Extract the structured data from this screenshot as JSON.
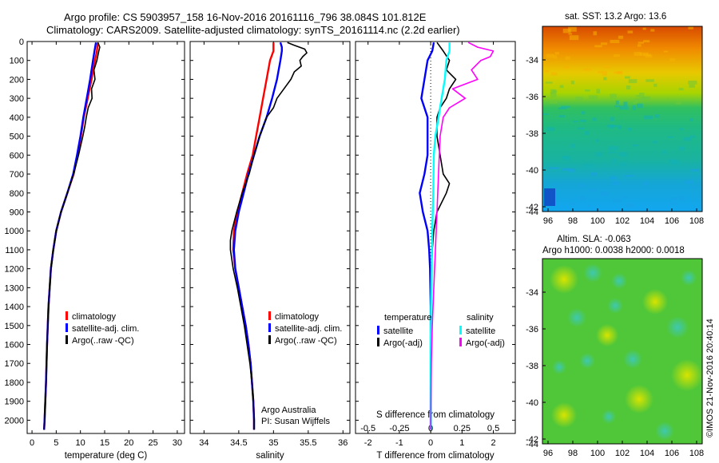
{
  "header": {
    "line1": "Argo profile: CS 5903957_158 16-Nov-2016 20161116_796 38.084S 101.812E",
    "line2": "Climatology: CARS2009. Satellite-adjusted climatology: synTS_20161114.nc (2.2d earlier)"
  },
  "colors": {
    "climatology": "#ff0000",
    "satellite": "#0000ff",
    "argo": "#000000",
    "sat_diff_s": "#00ffff",
    "argo_diff_s": "#ff00ff"
  },
  "chart_data": [
    {
      "type": "line",
      "panel": "temperature",
      "xlabel": "temperature (deg C)",
      "ylabel": "",
      "xlim": [
        -1,
        31.5
      ],
      "ylim": [
        2070,
        0
      ],
      "xticks": [
        0,
        5,
        10,
        15,
        20,
        25,
        30
      ],
      "yticks": [
        0,
        100,
        200,
        300,
        400,
        500,
        600,
        700,
        800,
        900,
        1000,
        1100,
        1200,
        1300,
        1400,
        1500,
        1600,
        1700,
        1800,
        1900,
        2000
      ],
      "legend": [
        "climatology",
        "satellite-adj. clim.",
        "Argo(..raw -QC)"
      ],
      "series": [
        {
          "name": "climatology",
          "depth": [
            5,
            50,
            100,
            200,
            300,
            400,
            500,
            600,
            700,
            800,
            900,
            1000,
            1100,
            1200,
            1400,
            1600,
            1800,
            2000,
            2050
          ],
          "values": [
            13.6,
            13.4,
            13.0,
            12.3,
            11.5,
            10.7,
            10.1,
            9.4,
            8.6,
            7.3,
            6.0,
            5.0,
            4.4,
            3.9,
            3.4,
            3.1,
            2.9,
            2.6,
            2.5
          ]
        },
        {
          "name": "satellite-adj. clim.",
          "depth": [
            5,
            50,
            100,
            200,
            300,
            400,
            500,
            600,
            700,
            800,
            900,
            1000,
            1100,
            1200,
            1400,
            1600,
            1800,
            2000,
            2050
          ],
          "values": [
            13.2,
            12.9,
            12.6,
            12.0,
            11.3,
            10.6,
            10.0,
            9.3,
            8.5,
            7.3,
            6.0,
            5.0,
            4.4,
            3.9,
            3.4,
            3.1,
            2.9,
            2.6,
            2.5
          ]
        },
        {
          "name": "Argo(..raw -QC)",
          "depth": [
            5,
            30,
            50,
            100,
            150,
            200,
            250,
            300,
            350,
            400,
            450,
            500,
            600,
            700,
            800,
            900,
            1000,
            1100,
            1200,
            1400,
            1600,
            1800,
            2000,
            2050
          ],
          "values": [
            13.6,
            14.0,
            13.8,
            13.4,
            12.8,
            13.0,
            12.3,
            12.4,
            11.6,
            11.2,
            10.9,
            10.5,
            9.6,
            8.6,
            7.3,
            6.0,
            5.0,
            4.4,
            3.9,
            3.4,
            3.1,
            2.9,
            2.6,
            2.5
          ]
        }
      ]
    },
    {
      "type": "line",
      "panel": "salinity",
      "xlabel": "salinity",
      "ylabel": "",
      "xlim": [
        33.8,
        36.1
      ],
      "ylim": [
        2070,
        0
      ],
      "xticks": [
        34,
        34.5,
        35,
        35.5,
        36
      ],
      "xtick_labels": [
        "34",
        "34.5",
        "35",
        "35.5",
        "36"
      ],
      "legend": [
        "climatology",
        "satellite-adj. clim.",
        "Argo(..raw -QC)"
      ],
      "annotation": [
        "Argo Australia",
        "PI: Susan Wijffels"
      ],
      "series": [
        {
          "name": "climatology",
          "depth": [
            5,
            30,
            50,
            100,
            200,
            300,
            400,
            500,
            600,
            700,
            800,
            900,
            1000,
            1100,
            1200,
            1300,
            1400,
            1500,
            1600,
            1700,
            1800,
            1900,
            2000,
            2050
          ],
          "values": [
            35.0,
            35.0,
            35.0,
            34.95,
            34.9,
            34.85,
            34.8,
            34.75,
            34.7,
            34.62,
            34.55,
            34.48,
            34.43,
            34.42,
            34.45,
            34.5,
            34.55,
            34.6,
            34.64,
            34.67,
            34.69,
            34.71,
            34.72,
            34.72
          ]
        },
        {
          "name": "satellite-adj. clim.",
          "depth": [
            5,
            30,
            50,
            100,
            200,
            300,
            400,
            500,
            600,
            700,
            800,
            900,
            1000,
            1100,
            1200,
            1300,
            1400,
            1500,
            1600,
            1700,
            1800,
            1900,
            2000,
            2050
          ],
          "values": [
            35.1,
            35.12,
            35.12,
            35.1,
            35.05,
            34.98,
            34.9,
            34.8,
            34.72,
            34.64,
            34.57,
            34.5,
            34.45,
            34.43,
            34.45,
            34.5,
            34.55,
            34.6,
            34.64,
            34.67,
            34.69,
            34.71,
            34.72,
            34.72
          ]
        },
        {
          "name": "Argo(..raw -QC)",
          "depth": [
            5,
            20,
            40,
            60,
            80,
            100,
            130,
            160,
            200,
            250,
            300,
            350,
            400,
            500,
            600,
            700,
            800,
            900,
            1000,
            1050,
            1100,
            1200,
            1300,
            1400,
            1500,
            1600,
            1700,
            1800,
            1900,
            2000,
            2050
          ],
          "values": [
            35.2,
            35.3,
            35.45,
            35.48,
            35.42,
            35.38,
            35.4,
            35.3,
            35.25,
            35.15,
            35.05,
            35.0,
            34.9,
            34.8,
            34.72,
            34.65,
            34.55,
            34.47,
            34.4,
            34.38,
            34.38,
            34.42,
            34.48,
            34.53,
            34.58,
            34.62,
            34.66,
            34.69,
            34.71,
            34.72,
            34.72
          ]
        }
      ]
    },
    {
      "type": "line",
      "panel": "difference",
      "xlabel": "T difference from climatology",
      "xlabel_top": "S difference from climatology",
      "xlim": [
        -2.4,
        2.7
      ],
      "ylim": [
        2070,
        0
      ],
      "xticks": [
        -2,
        -1,
        0,
        1,
        2
      ],
      "xtick_labels": [
        "-2",
        "-1",
        "0",
        "1",
        "2"
      ],
      "s_ticks": [
        -0.5,
        -0.25,
        0,
        0.25,
        0.5
      ],
      "s_tick_labels": [
        "-0.5",
        "-0.25",
        "0",
        "0.25",
        "0.5"
      ],
      "legend_titles": [
        "temperature",
        "salinity"
      ],
      "legend": [
        "satellite",
        "Argo(-adj)",
        "satellite",
        "Argo(-adj)"
      ],
      "series": [
        {
          "name": "satellite",
          "group": "temperature",
          "depth": [
            5,
            50,
            100,
            200,
            300,
            400,
            500,
            600,
            700,
            800,
            900,
            1000,
            1100,
            1200,
            1400,
            1600,
            2050
          ],
          "values": [
            0.1,
            0.05,
            -0.1,
            -0.2,
            -0.3,
            -0.1,
            -0.1,
            -0.1,
            -0.2,
            -0.35,
            -0.25,
            -0.1,
            -0.05,
            -0.02,
            0,
            0,
            0
          ]
        },
        {
          "name": "Argo(-adj)",
          "group": "temperature",
          "depth": [
            5,
            50,
            100,
            150,
            200,
            250,
            300,
            350,
            400,
            500,
            600,
            700,
            750,
            800,
            900,
            1000,
            1100,
            1200,
            1400,
            1600,
            2050
          ],
          "values": [
            0.2,
            0.4,
            0.6,
            0.5,
            0.8,
            0.6,
            0.5,
            0.3,
            0.2,
            0.2,
            0.3,
            0.4,
            0.6,
            0.5,
            0.2,
            0.1,
            0.05,
            0.03,
            0,
            0,
            0
          ]
        },
        {
          "name": "satellite",
          "group": "salinity",
          "depth": [
            5,
            50,
            100,
            200,
            300,
            400,
            500,
            600,
            800,
            1000,
            1200,
            1400,
            1600,
            2050
          ],
          "values": [
            0.6,
            0.6,
            0.5,
            0.45,
            0.35,
            0.25,
            0.15,
            0.1,
            0.08,
            0.05,
            0.03,
            0.01,
            0,
            0
          ]
        },
        {
          "name": "Argo(-adj)",
          "group": "salinity",
          "depth": [
            5,
            30,
            50,
            80,
            100,
            150,
            200,
            250,
            300,
            350,
            400,
            500,
            700,
            900,
            1100,
            1300,
            1500,
            1700,
            2050
          ],
          "values": [
            1.2,
            1.5,
            2.0,
            1.9,
            1.6,
            1.3,
            1.5,
            0.7,
            1.1,
            0.6,
            0.4,
            0.3,
            0.25,
            0.2,
            0.15,
            0.1,
            0.05,
            0.02,
            0
          ]
        }
      ]
    }
  ],
  "maps": {
    "sst": {
      "title": "sat. SST: 13.2  Argo: 13.6",
      "xticks": [
        "96",
        "98",
        "100",
        "102",
        "104",
        "106",
        "108"
      ],
      "yticks": [
        "-34",
        "-36",
        "-38",
        "-40",
        "-42",
        "-44"
      ]
    },
    "sla": {
      "title1": "Altim. SLA: -0.063",
      "title2": "Argo h1000: 0.0038 h2000: 0.0018",
      "xticks": [
        "96",
        "98",
        "100",
        "102",
        "104",
        "106",
        "108"
      ],
      "yticks": [
        "-34",
        "-36",
        "-38",
        "-40",
        "-42",
        "-44"
      ]
    }
  },
  "footer": {
    "vertical_stamp": "©IMOS 21-Nov-2016 20:40:14"
  }
}
